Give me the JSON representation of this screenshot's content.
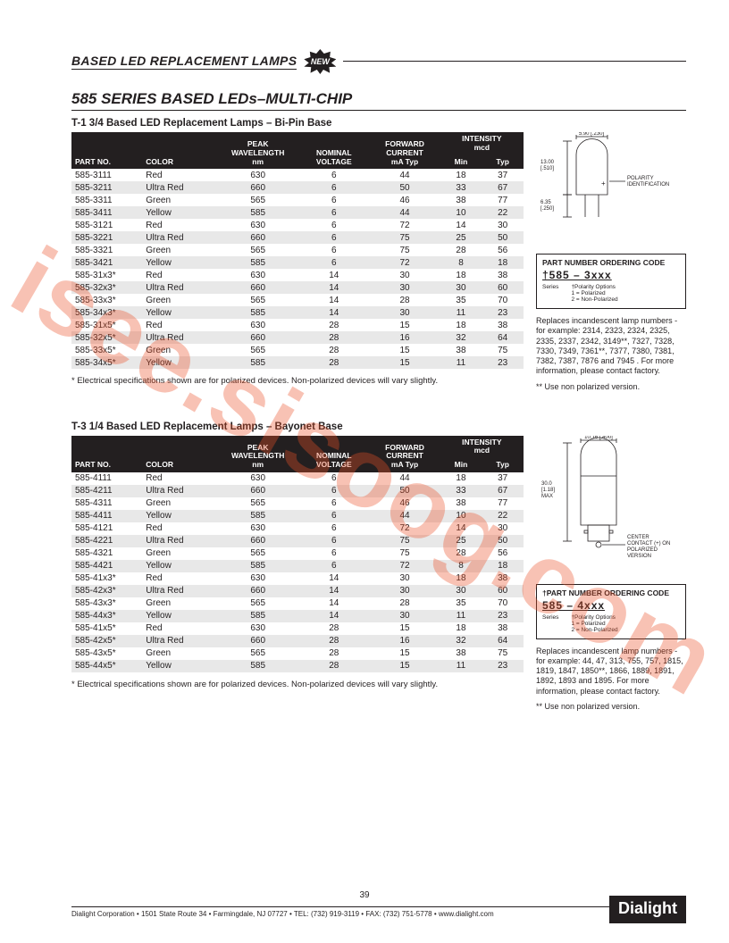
{
  "header": {
    "category": "BASED LED REPLACEMENT LAMPS",
    "badge": "NEW",
    "series_title": "585 SERIES BASED LEDs–MULTI-CHIP"
  },
  "watermark": "isee.sisoog.com",
  "page_number": "39",
  "footer_text": "Dialight Corporation • 1501 State Route 34 • Farmingdale, NJ 07727 • TEL: (732) 919-3119 • FAX: (732) 751-5778 • www.dialight.com",
  "brand": "Dialight",
  "colors": {
    "text": "#231f20",
    "header_bg": "#231f20",
    "header_fg": "#ffffff",
    "row_shade": "#e8e8e8",
    "watermark": "rgba(236,80,40,0.35)"
  },
  "table_columns": {
    "part_no": "PART NO.",
    "color": "COLOR",
    "peak_wavelength": "PEAK\nWAVELENGTH\nnm",
    "nominal_voltage": "NOMINAL\nVOLTAGE",
    "forward_current": "FORWARD\nCURRENT\nmA Typ",
    "intensity": "INTENSITY\nmcd",
    "min": "Min",
    "typ": "Typ"
  },
  "footnote": "* Electrical specifications shown are for polarized devices. Non-polarized devices will vary slightly.",
  "section1": {
    "title": "T-1 3/4 Based LED Replacement Lamps – Bi-Pin Base",
    "rows": [
      {
        "pn": "585-3111",
        "color": "Red",
        "wl": "630",
        "v": "6",
        "ma": "44",
        "min": "18",
        "typ": "37"
      },
      {
        "pn": "585-3211",
        "color": "Ultra Red",
        "wl": "660",
        "v": "6",
        "ma": "50",
        "min": "33",
        "typ": "67"
      },
      {
        "pn": "585-3311",
        "color": "Green",
        "wl": "565",
        "v": "6",
        "ma": "46",
        "min": "38",
        "typ": "77"
      },
      {
        "pn": "585-3411",
        "color": "Yellow",
        "wl": "585",
        "v": "6",
        "ma": "44",
        "min": "10",
        "typ": "22"
      },
      {
        "pn": "585-3121",
        "color": "Red",
        "wl": "630",
        "v": "6",
        "ma": "72",
        "min": "14",
        "typ": "30"
      },
      {
        "pn": "585-3221",
        "color": "Ultra Red",
        "wl": "660",
        "v": "6",
        "ma": "75",
        "min": "25",
        "typ": "50"
      },
      {
        "pn": "585-3321",
        "color": "Green",
        "wl": "565",
        "v": "6",
        "ma": "75",
        "min": "28",
        "typ": "56"
      },
      {
        "pn": "585-3421",
        "color": "Yellow",
        "wl": "585",
        "v": "6",
        "ma": "72",
        "min": "8",
        "typ": "18"
      },
      {
        "pn": "585-31x3*",
        "color": "Red",
        "wl": "630",
        "v": "14",
        "ma": "30",
        "min": "18",
        "typ": "38"
      },
      {
        "pn": "585-32x3*",
        "color": "Ultra Red",
        "wl": "660",
        "v": "14",
        "ma": "30",
        "min": "30",
        "typ": "60"
      },
      {
        "pn": "585-33x3*",
        "color": "Green",
        "wl": "565",
        "v": "14",
        "ma": "28",
        "min": "35",
        "typ": "70"
      },
      {
        "pn": "585-34x3*",
        "color": "Yellow",
        "wl": "585",
        "v": "14",
        "ma": "30",
        "min": "11",
        "typ": "23"
      },
      {
        "pn": "585-31x5*",
        "color": "Red",
        "wl": "630",
        "v": "28",
        "ma": "15",
        "min": "18",
        "typ": "38"
      },
      {
        "pn": "585-32x5*",
        "color": "Ultra Red",
        "wl": "660",
        "v": "28",
        "ma": "16",
        "min": "32",
        "typ": "64"
      },
      {
        "pn": "585-33x5*",
        "color": "Green",
        "wl": "565",
        "v": "28",
        "ma": "15",
        "min": "38",
        "typ": "75"
      },
      {
        "pn": "585-34x5*",
        "color": "Yellow",
        "wl": "585",
        "v": "28",
        "ma": "15",
        "min": "11",
        "typ": "23"
      }
    ],
    "diagram": {
      "dim_w": "5.90 [.230]",
      "dim_h": "13.00\n[.510]",
      "dim_pin": "6.35\n[.250]",
      "polarity_label": "POLARITY\nIDENTIFICATION"
    },
    "ordering": {
      "title": "PART NUMBER ORDERING CODE",
      "code": "†585 – 3xxx",
      "series": "Series",
      "polarity": "†Polarity Options\n1 = Polarized\n2 = Non-Polarized"
    },
    "replaces": "Replaces incandescent lamp numbers - for example: 2314, 2323, 2324, 2325, 2335, 2337, 2342, 3149**, 7327, 7328, 7330, 7349, 7361**, 7377, 7380, 7381, 7382, 7387, 7876 and 7945 . For more information, please contact factory.",
    "note": "** Use non polarized version."
  },
  "section2": {
    "title": "T-3 1/4 Based LED Replacement Lamps – Bayonet Base",
    "rows": [
      {
        "pn": "585-4111",
        "color": "Red",
        "wl": "630",
        "v": "6",
        "ma": "44",
        "min": "18",
        "typ": "37"
      },
      {
        "pn": "585-4211",
        "color": "Ultra Red",
        "wl": "660",
        "v": "6",
        "ma": "50",
        "min": "33",
        "typ": "67"
      },
      {
        "pn": "585-4311",
        "color": "Green",
        "wl": "565",
        "v": "6",
        "ma": "46",
        "min": "38",
        "typ": "77"
      },
      {
        "pn": "585-4411",
        "color": "Yellow",
        "wl": "585",
        "v": "6",
        "ma": "44",
        "min": "10",
        "typ": "22"
      },
      {
        "pn": "585-4121",
        "color": "Red",
        "wl": "630",
        "v": "6",
        "ma": "72",
        "min": "14",
        "typ": "30"
      },
      {
        "pn": "585-4221",
        "color": "Ultra Red",
        "wl": "660",
        "v": "6",
        "ma": "75",
        "min": "25",
        "typ": "50"
      },
      {
        "pn": "585-4321",
        "color": "Green",
        "wl": "565",
        "v": "6",
        "ma": "75",
        "min": "28",
        "typ": "56"
      },
      {
        "pn": "585-4421",
        "color": "Yellow",
        "wl": "585",
        "v": "6",
        "ma": "72",
        "min": "8",
        "typ": "18"
      },
      {
        "pn": "585-41x3*",
        "color": "Red",
        "wl": "630",
        "v": "14",
        "ma": "30",
        "min": "18",
        "typ": "38"
      },
      {
        "pn": "585-42x3*",
        "color": "Ultra Red",
        "wl": "660",
        "v": "14",
        "ma": "30",
        "min": "30",
        "typ": "60"
      },
      {
        "pn": "585-43x3*",
        "color": "Green",
        "wl": "565",
        "v": "14",
        "ma": "28",
        "min": "35",
        "typ": "70"
      },
      {
        "pn": "585-44x3*",
        "color": "Yellow",
        "wl": "585",
        "v": "14",
        "ma": "30",
        "min": "11",
        "typ": "23"
      },
      {
        "pn": "585-41x5*",
        "color": "Red",
        "wl": "630",
        "v": "28",
        "ma": "15",
        "min": "18",
        "typ": "38"
      },
      {
        "pn": "585-42x5*",
        "color": "Ultra Red",
        "wl": "660",
        "v": "28",
        "ma": "16",
        "min": "32",
        "typ": "64"
      },
      {
        "pn": "585-43x5*",
        "color": "Green",
        "wl": "565",
        "v": "28",
        "ma": "15",
        "min": "38",
        "typ": "75"
      },
      {
        "pn": "585-44x5*",
        "color": "Yellow",
        "wl": "585",
        "v": "28",
        "ma": "15",
        "min": "11",
        "typ": "23"
      }
    ],
    "diagram": {
      "dim_w": "10.16 [.400]",
      "dim_h": "30.0\n[1.18]\nMAX",
      "center_label": "CENTER\nCONTACT (+) ON\nPOLARIZED\nVERSION"
    },
    "ordering": {
      "title": "†PART NUMBER ORDERING CODE",
      "code": "585 – 4xxx",
      "series": "Series",
      "polarity": "†Polarity Options\n1 = Polarized\n2 = Non-Polarized"
    },
    "replaces": "Replaces incandescent lamp numbers - for example: 44, 47, 313, 755, 757, 1815, 1819, 1847, 1850**, 1866, 1889, 1891, 1892, 1893 and 1895. For more information, please contact factory.",
    "note": "** Use non polarized version."
  }
}
